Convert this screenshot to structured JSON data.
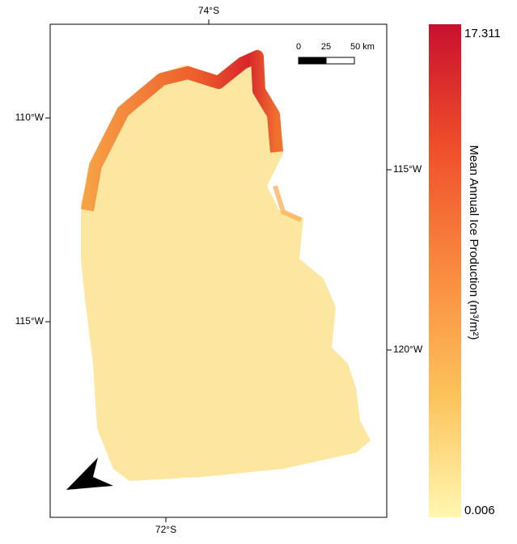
{
  "map": {
    "graticule": {
      "top": [
        "74°S"
      ],
      "bottom": [
        "72°S"
      ],
      "left": [
        "110°W",
        "115°W"
      ],
      "right": [
        "115°W",
        "120°W"
      ]
    },
    "scale_bar": {
      "labels": [
        "0",
        "25",
        "50 km"
      ]
    },
    "colorbar": {
      "title": "Mean Annual Ice Production (m³/m²)",
      "max": 17.311,
      "min": 0.006
    }
  }
}
